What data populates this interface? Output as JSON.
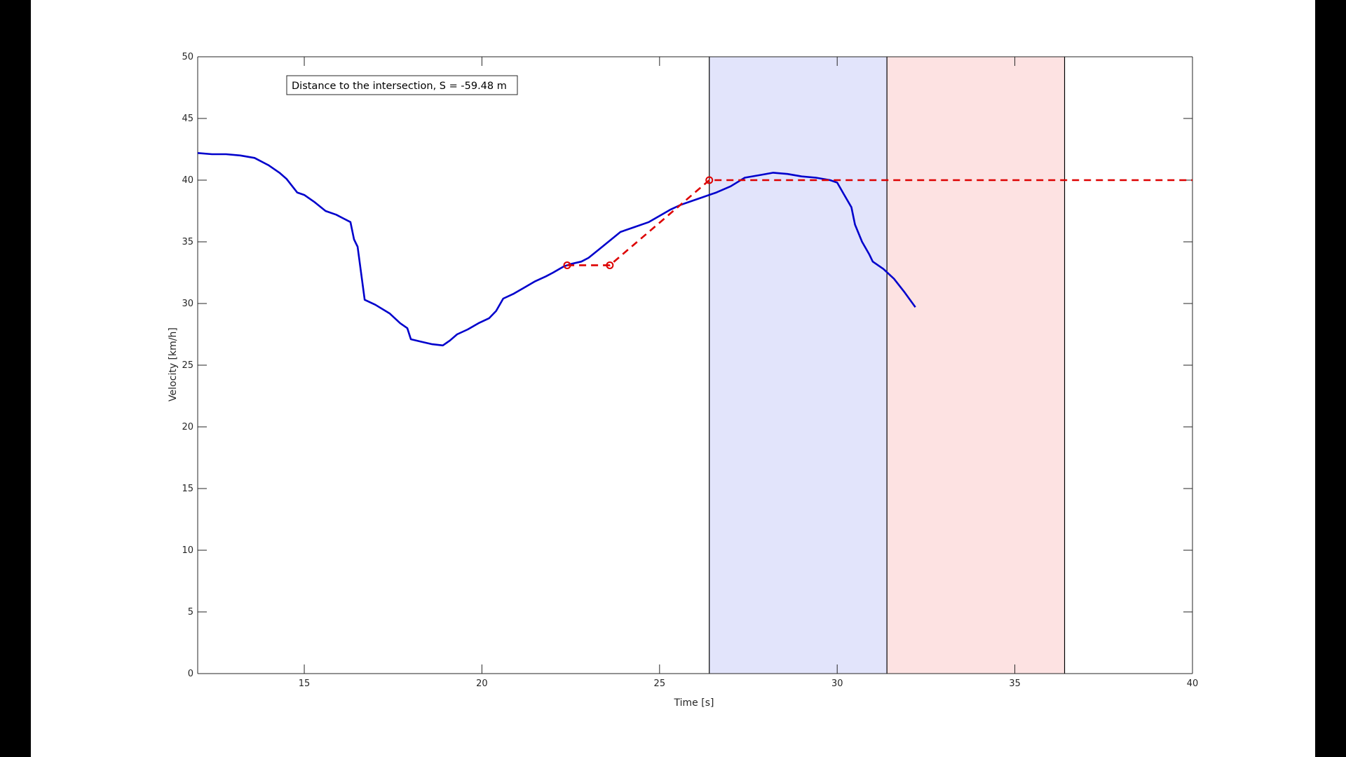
{
  "chart_data": {
    "type": "line",
    "xlabel": "Time [s]",
    "ylabel": "Velocity [km/h]",
    "xlim": [
      12,
      40
    ],
    "ylim": [
      0,
      50
    ],
    "xticks": [
      15,
      20,
      25,
      30,
      35,
      40
    ],
    "yticks": [
      0,
      5,
      10,
      15,
      20,
      25,
      30,
      35,
      40,
      45,
      50
    ],
    "grid": false,
    "annotation": "Distance to the intersection, S = -59.48 m",
    "colors": {
      "measured": "#0000cc",
      "advised": "#dd0000",
      "blue_band": "#e2e4fb",
      "red_band": "#fde2e2"
    },
    "bands": [
      {
        "x0": 26.4,
        "x1": 31.4,
        "color": "#e2e4fb"
      },
      {
        "x0": 31.4,
        "x1": 36.4,
        "color": "#fde2e2"
      }
    ],
    "vlines": [
      26.4,
      31.4,
      36.4
    ],
    "series": [
      {
        "style": "solid",
        "x": [
          12,
          12.4,
          12.8,
          13.2,
          13.6,
          14.0,
          14.3,
          14.5,
          14.8,
          15.0,
          15.3,
          15.6,
          15.9,
          16.1,
          16.3,
          16.4,
          16.5,
          16.7,
          17.0,
          17.4,
          17.7,
          17.9,
          18.0,
          18.3,
          18.6,
          18.9,
          19.1,
          19.3,
          19.6,
          19.9,
          20.2,
          20.4,
          20.6,
          20.9,
          21.2,
          21.5,
          21.8,
          22.0,
          22.3,
          22.5,
          22.8,
          23.0,
          23.3,
          23.6,
          23.9,
          24.3,
          24.7,
          25.0,
          25.3,
          25.6,
          25.9,
          26.2,
          26.6,
          27.0,
          27.4,
          27.8,
          28.2,
          28.6,
          29.0,
          29.4,
          29.8,
          30.0,
          30.2,
          30.4,
          30.5,
          30.7,
          30.9,
          31.0,
          31.3,
          31.6,
          31.9,
          32.2
        ],
        "y": [
          42.2,
          42.1,
          42.1,
          42.0,
          41.8,
          41.2,
          40.6,
          40.1,
          39.0,
          38.8,
          38.2,
          37.5,
          37.2,
          36.9,
          36.6,
          35.2,
          34.6,
          30.3,
          29.9,
          29.2,
          28.4,
          28.0,
          27.1,
          26.9,
          26.7,
          26.6,
          27.0,
          27.5,
          27.9,
          28.4,
          28.8,
          29.4,
          30.4,
          30.8,
          31.3,
          31.8,
          32.2,
          32.5,
          33.0,
          33.2,
          33.4,
          33.7,
          34.4,
          35.1,
          35.8,
          36.2,
          36.6,
          37.1,
          37.6,
          38.0,
          38.3,
          38.6,
          39.0,
          39.5,
          40.2,
          40.4,
          40.6,
          40.5,
          40.3,
          40.2,
          40.0,
          39.8,
          38.8,
          37.8,
          36.4,
          35.0,
          34.0,
          33.4,
          32.8,
          32.0,
          30.9,
          29.7
        ]
      },
      {
        "style": "dashed",
        "x": [
          22.4,
          23.6,
          26.4,
          40
        ],
        "y": [
          33.1,
          33.1,
          40.0,
          40.0
        ],
        "markers": [
          [
            22.4,
            33.1
          ],
          [
            23.6,
            33.1
          ],
          [
            26.4,
            40.0
          ]
        ]
      }
    ]
  }
}
